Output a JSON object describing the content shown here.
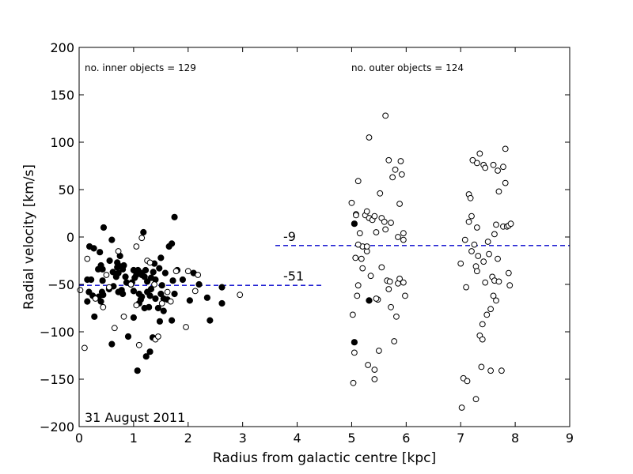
{
  "chart_data": {
    "type": "scatter",
    "title": "",
    "xlabel": "Radius from galactic centre [kpc]",
    "ylabel": "Radial velocity [km/s]",
    "xlim": [
      0,
      9
    ],
    "ylim": [
      -200,
      200
    ],
    "xticks": [
      0,
      1,
      2,
      3,
      4,
      5,
      6,
      7,
      8,
      9
    ],
    "yticks": [
      -200,
      -150,
      -100,
      -50,
      0,
      50,
      100,
      150,
      200
    ],
    "grid": false,
    "annotations": {
      "inner_count": "no. inner objects = 129",
      "outer_count": "no. outer objects = 124",
      "date": "31 August 2011",
      "inner_mean_label": "-51",
      "outer_mean_label": "-9"
    },
    "mean_lines": [
      {
        "y": -51,
        "x_range": [
          0,
          4.5
        ],
        "color": "#0000cc",
        "style": "dashed"
      },
      {
        "y": -9,
        "x_range": [
          3.6,
          9
        ],
        "color": "#0000cc",
        "style": "dashed"
      }
    ],
    "series": [
      {
        "marker": "filled-circle",
        "points": [
          [
            0.45,
            10
          ],
          [
            0.6,
            -3
          ],
          [
            0.27,
            -12
          ],
          [
            0.19,
            -10
          ],
          [
            0.38,
            -16
          ],
          [
            0.56,
            -25
          ],
          [
            0.75,
            -20
          ],
          [
            0.7,
            -27
          ],
          [
            0.75,
            -31
          ],
          [
            0.4,
            -30
          ],
          [
            0.35,
            -34
          ],
          [
            0.43,
            -34
          ],
          [
            0.15,
            -45
          ],
          [
            0.22,
            -45
          ],
          [
            0.43,
            -46
          ],
          [
            0.18,
            -58
          ],
          [
            0.25,
            -62
          ],
          [
            0.36,
            -63
          ],
          [
            0.42,
            -58
          ],
          [
            0.44,
            -61
          ],
          [
            0.63,
            -52
          ],
          [
            0.72,
            -58
          ],
          [
            0.78,
            -56
          ],
          [
            0.8,
            -60
          ],
          [
            0.15,
            -68
          ],
          [
            0.4,
            -68
          ],
          [
            0.28,
            -84
          ],
          [
            0.6,
            -113
          ],
          [
            0.9,
            -105
          ],
          [
            1.07,
            -141
          ],
          [
            0.7,
            -32
          ],
          [
            0.62,
            -37
          ],
          [
            0.68,
            -42
          ],
          [
            0.72,
            -38
          ],
          [
            0.8,
            -34
          ],
          [
            0.87,
            -48
          ],
          [
            0.97,
            -48
          ],
          [
            1.0,
            -35
          ],
          [
            1.05,
            -40
          ],
          [
            1.15,
            -40
          ],
          [
            1.2,
            -42
          ],
          [
            1.25,
            -47
          ],
          [
            1.32,
            -43
          ],
          [
            1.36,
            -37
          ],
          [
            1.38,
            -28
          ],
          [
            1.47,
            -33
          ],
          [
            1.5,
            -22
          ],
          [
            1.58,
            -38
          ],
          [
            1.3,
            -62
          ],
          [
            1.4,
            -65
          ],
          [
            1.5,
            -60
          ],
          [
            1.52,
            -51
          ],
          [
            1.62,
            -66
          ],
          [
            1.45,
            -75
          ],
          [
            1.48,
            -89
          ],
          [
            1.55,
            -78
          ],
          [
            1.7,
            -88
          ],
          [
            1.35,
            -106
          ],
          [
            1.3,
            -121
          ],
          [
            1.23,
            -126
          ],
          [
            1.13,
            -66
          ],
          [
            1.1,
            -70
          ],
          [
            1.2,
            -75
          ],
          [
            1.28,
            -74
          ],
          [
            1.65,
            -10
          ],
          [
            1.7,
            -7
          ],
          [
            1.75,
            21
          ],
          [
            1.18,
            5
          ],
          [
            1.8,
            -35
          ],
          [
            1.9,
            -45
          ],
          [
            2.03,
            -67
          ],
          [
            2.35,
            -64
          ],
          [
            2.4,
            -88
          ],
          [
            2.62,
            -70
          ],
          [
            2.62,
            -53
          ],
          [
            2.1,
            -38
          ],
          [
            2.2,
            -50
          ],
          [
            1.72,
            -46
          ],
          [
            1.1,
            -60
          ],
          [
            1.15,
            -63
          ],
          [
            1.0,
            -57
          ],
          [
            0.95,
            -50
          ],
          [
            1.08,
            -35
          ],
          [
            0.85,
            -42
          ],
          [
            1.02,
            -43
          ],
          [
            1.22,
            -35
          ],
          [
            1.15,
            -38
          ],
          [
            1.4,
            -45
          ],
          [
            1.32,
            -55
          ],
          [
            0.82,
            -30
          ],
          [
            1.75,
            -60
          ],
          [
            1.0,
            -85
          ],
          [
            1.25,
            -58
          ],
          [
            1.55,
            -65
          ],
          [
            0.55,
            -55
          ],
          [
            5.05,
            14
          ],
          [
            5.05,
            -111
          ],
          [
            5.32,
            -67
          ]
        ]
      },
      {
        "marker": "open-circle",
        "points": [
          [
            0.02,
            -56
          ],
          [
            0.1,
            -117
          ],
          [
            0.15,
            -23
          ],
          [
            0.44,
            -74
          ],
          [
            0.55,
            -53
          ],
          [
            0.65,
            -96
          ],
          [
            0.82,
            -84
          ],
          [
            0.95,
            -50
          ],
          [
            1.05,
            -10
          ],
          [
            1.1,
            -114
          ],
          [
            1.15,
            -1
          ],
          [
            1.25,
            -25
          ],
          [
            1.3,
            -27
          ],
          [
            1.38,
            -50
          ],
          [
            1.4,
            -108
          ],
          [
            1.45,
            -105
          ],
          [
            1.52,
            -70
          ],
          [
            1.62,
            -58
          ],
          [
            1.68,
            -68
          ],
          [
            1.78,
            -36
          ],
          [
            1.96,
            -95
          ],
          [
            2.0,
            -36
          ],
          [
            2.13,
            -57
          ],
          [
            2.18,
            -40
          ],
          [
            2.95,
            -61
          ],
          [
            1.05,
            -72
          ],
          [
            0.72,
            -15
          ],
          [
            0.3,
            -65
          ],
          [
            0.5,
            -40
          ],
          [
            5.0,
            36
          ],
          [
            5.02,
            -82
          ],
          [
            5.03,
            -154
          ],
          [
            5.05,
            -122
          ],
          [
            5.07,
            -22
          ],
          [
            5.08,
            24
          ],
          [
            5.1,
            -62
          ],
          [
            5.12,
            -51
          ],
          [
            5.12,
            59
          ],
          [
            5.15,
            4
          ],
          [
            5.18,
            -23
          ],
          [
            5.2,
            -10
          ],
          [
            5.2,
            -33
          ],
          [
            5.25,
            23
          ],
          [
            5.28,
            27
          ],
          [
            5.28,
            -15
          ],
          [
            5.3,
            -135
          ],
          [
            5.32,
            20
          ],
          [
            5.35,
            -41
          ],
          [
            5.38,
            18
          ],
          [
            5.42,
            -140
          ],
          [
            5.42,
            22
          ],
          [
            5.42,
            -150
          ],
          [
            5.45,
            5
          ],
          [
            5.48,
            -66
          ],
          [
            5.5,
            -120
          ],
          [
            5.52,
            46
          ],
          [
            5.55,
            20
          ],
          [
            5.55,
            -32
          ],
          [
            5.6,
            16
          ],
          [
            5.62,
            8
          ],
          [
            5.65,
            -46
          ],
          [
            5.68,
            81
          ],
          [
            5.7,
            -47
          ],
          [
            5.72,
            15
          ],
          [
            5.72,
            -74
          ],
          [
            5.75,
            63
          ],
          [
            5.78,
            -110
          ],
          [
            5.8,
            71
          ],
          [
            5.82,
            -84
          ],
          [
            5.85,
            -49
          ],
          [
            5.88,
            -44
          ],
          [
            5.88,
            35
          ],
          [
            5.9,
            80
          ],
          [
            5.92,
            66
          ],
          [
            5.95,
            -3
          ],
          [
            5.98,
            -62
          ],
          [
            5.95,
            -48
          ],
          [
            5.08,
            23
          ],
          [
            5.32,
            105
          ],
          [
            5.62,
            128
          ],
          [
            5.45,
            -65
          ],
          [
            5.95,
            4
          ],
          [
            5.12,
            -8
          ],
          [
            5.28,
            -10
          ],
          [
            5.85,
            0
          ],
          [
            5.68,
            -55
          ],
          [
            7.0,
            -28
          ],
          [
            7.02,
            -180
          ],
          [
            7.05,
            -149
          ],
          [
            7.08,
            -3
          ],
          [
            7.1,
            -53
          ],
          [
            7.12,
            -152
          ],
          [
            7.15,
            45
          ],
          [
            7.18,
            41
          ],
          [
            7.2,
            22
          ],
          [
            7.2,
            -15
          ],
          [
            7.22,
            81
          ],
          [
            7.25,
            -8
          ],
          [
            7.28,
            -171
          ],
          [
            7.28,
            -31
          ],
          [
            7.3,
            10
          ],
          [
            7.3,
            78
          ],
          [
            7.32,
            -20
          ],
          [
            7.35,
            88
          ],
          [
            7.35,
            -104
          ],
          [
            7.38,
            -137
          ],
          [
            7.4,
            -108
          ],
          [
            7.4,
            -92
          ],
          [
            7.42,
            76
          ],
          [
            7.42,
            -26
          ],
          [
            7.45,
            73
          ],
          [
            7.45,
            -48
          ],
          [
            7.48,
            -82
          ],
          [
            7.5,
            -5
          ],
          [
            7.52,
            -18
          ],
          [
            7.55,
            -141
          ],
          [
            7.55,
            -76
          ],
          [
            7.58,
            -42
          ],
          [
            7.6,
            76
          ],
          [
            7.6,
            -62
          ],
          [
            7.62,
            -46
          ],
          [
            7.65,
            13
          ],
          [
            7.65,
            -67
          ],
          [
            7.68,
            -23
          ],
          [
            7.68,
            70
          ],
          [
            7.7,
            48
          ],
          [
            7.7,
            -47
          ],
          [
            7.75,
            -141
          ],
          [
            7.78,
            11
          ],
          [
            7.78,
            74
          ],
          [
            7.82,
            93
          ],
          [
            7.82,
            57
          ],
          [
            7.85,
            11
          ],
          [
            7.88,
            -38
          ],
          [
            7.88,
            12
          ],
          [
            7.9,
            -51
          ],
          [
            7.92,
            14
          ],
          [
            7.15,
            16
          ],
          [
            7.62,
            3
          ],
          [
            7.3,
            -36
          ]
        ]
      }
    ]
  },
  "colors": {
    "marker_fill": "#000000",
    "marker_open_fill": "#ffffff",
    "marker_edge": "#000000",
    "mean_line": "#0000cc",
    "axes": "#000000"
  }
}
